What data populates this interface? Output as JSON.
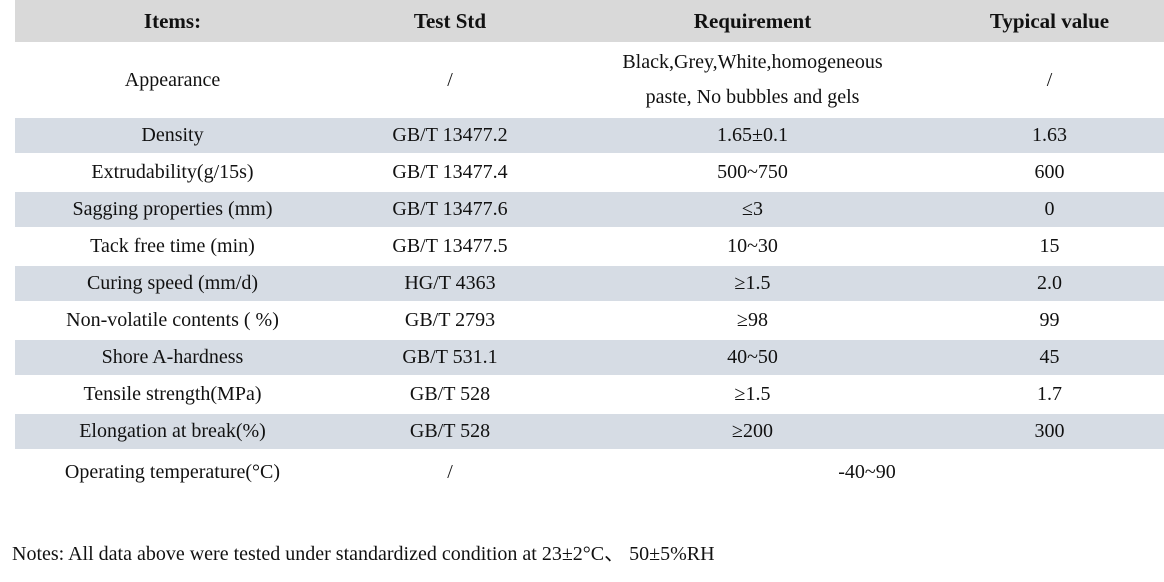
{
  "colors": {
    "header_bg": "#d9d9d9",
    "shaded_row_bg": "#d6dce4",
    "text": "#111111",
    "page_bg": "#ffffff"
  },
  "table": {
    "columns": [
      "Items:",
      "Test Std",
      "Requirement",
      "Typical value"
    ],
    "rows": [
      {
        "item": "Appearance",
        "test_std": "/",
        "requirement": "Black,Grey,White,homogeneous paste, No bubbles and gels",
        "requirement_lines": [
          "Black,Grey,White,homogeneous",
          "paste, No bubbles and gels"
        ],
        "typical": "/",
        "shaded": false,
        "tall": true
      },
      {
        "item": "Density",
        "test_std": "GB/T 13477.2",
        "requirement": "1.65±0.1",
        "typical": "1.63",
        "shaded": true
      },
      {
        "item": "Extrudability(g/15s)",
        "test_std": "GB/T 13477.4",
        "requirement": "500~750",
        "typical": "600",
        "shaded": false
      },
      {
        "item": "Sagging properties (mm)",
        "test_std": "GB/T 13477.6",
        "requirement": "≤3",
        "typical": "0",
        "shaded": true
      },
      {
        "item": "Tack free time (min)",
        "test_std": "GB/T 13477.5",
        "requirement": "10~30",
        "typical": "15",
        "shaded": false
      },
      {
        "item": "Curing speed (mm/d)",
        "test_std": "HG/T 4363",
        "requirement": "≥1.5",
        "typical": "2.0",
        "shaded": true
      },
      {
        "item": "Non-volatile contents ( %)",
        "test_std": "GB/T 2793",
        "requirement": "≥98",
        "typical": "99",
        "shaded": false
      },
      {
        "item": "Shore A-hardness",
        "test_std": "GB/T 531.1",
        "requirement": "40~50",
        "typical": "45",
        "shaded": true
      },
      {
        "item": "Tensile strength(MPa)",
        "test_std": "GB/T 528",
        "requirement": "≥1.5",
        "typical": "1.7",
        "shaded": false
      },
      {
        "item": "Elongation at break(%)",
        "test_std": "GB/T 528",
        "requirement": "≥200",
        "typical": "300",
        "shaded": true
      },
      {
        "item": "Operating temperature(°C)",
        "test_std": "/",
        "requirement": "-40~90",
        "typical": "",
        "shaded": false,
        "span_requirement": true,
        "last": true
      }
    ]
  },
  "notes": "Notes: All data above were tested under standardized condition at 23±2°C、 50±5%RH"
}
